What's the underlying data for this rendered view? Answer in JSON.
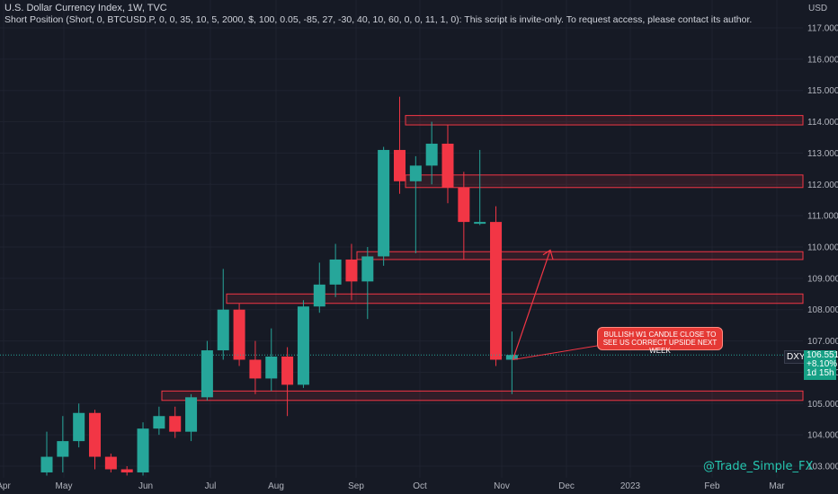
{
  "header": {
    "title": "U.S. Dollar Currency Index, 1W, TVC",
    "indicator": "Short Position (Short, 0, BTCUSD.P, 0, 0, 35, 10, 5, 2000, $, 100, 0.05, -85, 27, -30, 40, 10, 60, 0, 0, 11, 1, 0): This script is invite-only. To request access, please contact its author."
  },
  "currency_label": "USD",
  "price_badge": {
    "symbol": "DXY",
    "price": "106.551",
    "change": "+8.10%",
    "timer": "1d 15h"
  },
  "annotation": {
    "line1": "BULLISH W1 CANDLE CLOSE TO",
    "line2": "SEE US CORRECT UPSIDE NEXT WEEK"
  },
  "watermark": "@Trade_Simple_FX",
  "colors": {
    "background": "#161a25",
    "up": "#26a69a",
    "down": "#f23645",
    "zone": "#f23645",
    "grid": "#1f2330"
  },
  "chart_data": {
    "type": "candlestick",
    "title": "U.S. Dollar Currency Index, 1W, TVC",
    "ylim": [
      102.7,
      117.6
    ],
    "y_ticks": [
      "103.000",
      "104.000",
      "105.000",
      "106.000",
      "107.000",
      "108.000",
      "109.000",
      "110.000",
      "111.000",
      "112.000",
      "113.000",
      "114.000",
      "115.000",
      "116.000",
      "117.000"
    ],
    "x_ticks": [
      "Apr",
      "May",
      "Jun",
      "Jul",
      "Aug",
      "Sep",
      "Oct",
      "Nov",
      "Dec",
      "2023",
      "Feb",
      "Mar"
    ],
    "candles": [
      {
        "o": 102.8,
        "h": 104.1,
        "l": 102.7,
        "c": 103.3
      },
      {
        "o": 103.3,
        "h": 104.6,
        "l": 102.8,
        "c": 103.8
      },
      {
        "o": 103.8,
        "h": 105.0,
        "l": 103.6,
        "c": 104.7
      },
      {
        "o": 104.7,
        "h": 104.8,
        "l": 102.9,
        "c": 103.3
      },
      {
        "o": 103.3,
        "h": 103.4,
        "l": 102.8,
        "c": 102.9
      },
      {
        "o": 102.9,
        "h": 103.0,
        "l": 102.7,
        "c": 102.8
      },
      {
        "o": 102.8,
        "h": 104.4,
        "l": 102.7,
        "c": 104.2
      },
      {
        "o": 104.2,
        "h": 104.9,
        "l": 104.0,
        "c": 104.6
      },
      {
        "o": 104.6,
        "h": 104.9,
        "l": 103.9,
        "c": 104.1
      },
      {
        "o": 104.1,
        "h": 105.3,
        "l": 103.8,
        "c": 105.2
      },
      {
        "o": 105.2,
        "h": 107.0,
        "l": 105.1,
        "c": 106.7
      },
      {
        "o": 106.7,
        "h": 109.3,
        "l": 106.4,
        "c": 108.0
      },
      {
        "o": 108.0,
        "h": 108.2,
        "l": 106.2,
        "c": 106.4
      },
      {
        "o": 106.4,
        "h": 107.0,
        "l": 105.3,
        "c": 105.8
      },
      {
        "o": 105.8,
        "h": 107.4,
        "l": 105.4,
        "c": 106.5
      },
      {
        "o": 106.5,
        "h": 106.8,
        "l": 104.6,
        "c": 105.6
      },
      {
        "o": 105.6,
        "h": 108.3,
        "l": 105.5,
        "c": 108.1
      },
      {
        "o": 108.1,
        "h": 109.5,
        "l": 107.9,
        "c": 108.8
      },
      {
        "o": 108.8,
        "h": 110.1,
        "l": 108.4,
        "c": 109.6
      },
      {
        "o": 109.6,
        "h": 110.1,
        "l": 108.3,
        "c": 108.9
      },
      {
        "o": 108.9,
        "h": 110.0,
        "l": 107.7,
        "c": 109.7
      },
      {
        "o": 109.7,
        "h": 113.2,
        "l": 109.4,
        "c": 113.1
      },
      {
        "o": 113.1,
        "h": 114.8,
        "l": 111.7,
        "c": 112.1
      },
      {
        "o": 112.1,
        "h": 112.9,
        "l": 109.8,
        "c": 112.6
      },
      {
        "o": 112.6,
        "h": 114.0,
        "l": 112.0,
        "c": 113.3
      },
      {
        "o": 113.3,
        "h": 113.9,
        "l": 111.4,
        "c": 111.9
      },
      {
        "o": 111.9,
        "h": 112.4,
        "l": 109.6,
        "c": 110.8
      },
      {
        "o": 110.8,
        "h": 113.1,
        "l": 110.7,
        "c": 110.8
      },
      {
        "o": 110.8,
        "h": 111.3,
        "l": 106.2,
        "c": 106.4
      },
      {
        "o": 106.4,
        "h": 107.3,
        "l": 105.3,
        "c": 106.55
      }
    ],
    "zones": [
      {
        "top": 114.2,
        "bottom": 113.9
      },
      {
        "top": 112.3,
        "bottom": 111.9
      },
      {
        "top": 109.85,
        "bottom": 109.6
      },
      {
        "top": 108.5,
        "bottom": 108.2
      },
      {
        "top": 105.4,
        "bottom": 105.1
      }
    ],
    "last_price": 106.551
  }
}
